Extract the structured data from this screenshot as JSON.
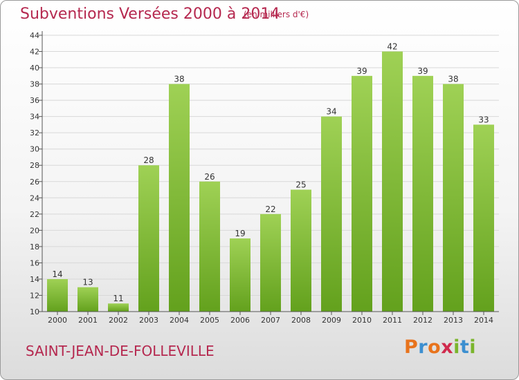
{
  "header": {
    "title": "Subventions Versées 2000 à 2014",
    "subtitle": "(en milliers d'€)"
  },
  "footer": {
    "commune": "SAINT-JEAN-DE-FOLLEVILLE",
    "logo": "Proxiti",
    "logo_colors": [
      "#e8731c",
      "#3c8fd0",
      "#e8731c",
      "#d02a4d",
      "#7ab52c",
      "#3c8fd0",
      "#7ab52c"
    ]
  },
  "colors": {
    "bar_top": "#9fd155",
    "bar_bottom": "#63a11d",
    "axis": "#555555",
    "grid": "#d8d8d8"
  },
  "chart_data": {
    "type": "bar",
    "title": "Subventions Versées 2000 à 2014",
    "subtitle": "(en milliers d'€)",
    "categories": [
      "2000",
      "2001",
      "2002",
      "2003",
      "2004",
      "2005",
      "2006",
      "2007",
      "2008",
      "2009",
      "2010",
      "2011",
      "2012",
      "2013",
      "2014"
    ],
    "values": [
      14,
      13,
      11,
      28,
      38,
      26,
      19,
      22,
      25,
      34,
      39,
      42,
      39,
      38,
      33
    ],
    "ylim": [
      10,
      44
    ],
    "yticks": [
      10,
      12,
      14,
      16,
      18,
      20,
      22,
      24,
      26,
      28,
      30,
      32,
      34,
      36,
      38,
      40,
      42,
      44
    ],
    "grid": true,
    "legend": "none"
  }
}
